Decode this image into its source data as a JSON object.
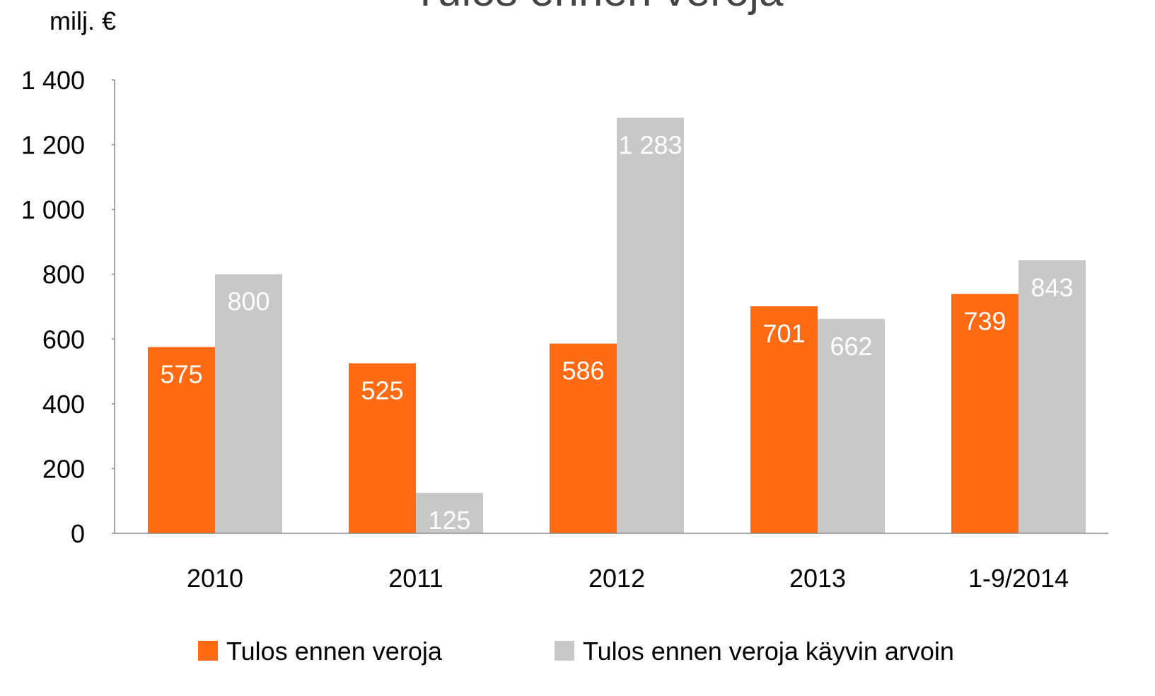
{
  "chart_data": {
    "type": "bar",
    "title": "Tulos ennen veroja",
    "y_label": "milj. €",
    "categories": [
      "2010",
      "2011",
      "2012",
      "2013",
      "1-9/2014"
    ],
    "series": [
      {
        "name": "Tulos ennen veroja",
        "color": "#ff6a13",
        "values": [
          575,
          525,
          586,
          701,
          739
        ]
      },
      {
        "name": "Tulos ennen veroja käyvin arvoin",
        "color": "#c8c8c8",
        "values": [
          800,
          125,
          1283,
          662,
          843
        ],
        "value_labels": [
          "800",
          "125",
          "1 283",
          "662",
          "843"
        ]
      }
    ],
    "ylim": [
      0,
      1400
    ],
    "yticks": [
      0,
      200,
      400,
      600,
      800,
      {
        "value": 1000,
        "label": "1 000"
      },
      {
        "value": 1200,
        "label": "1 200"
      },
      {
        "value": 1400,
        "label": "1 400"
      }
    ],
    "grid": false,
    "legend": "bottom"
  }
}
